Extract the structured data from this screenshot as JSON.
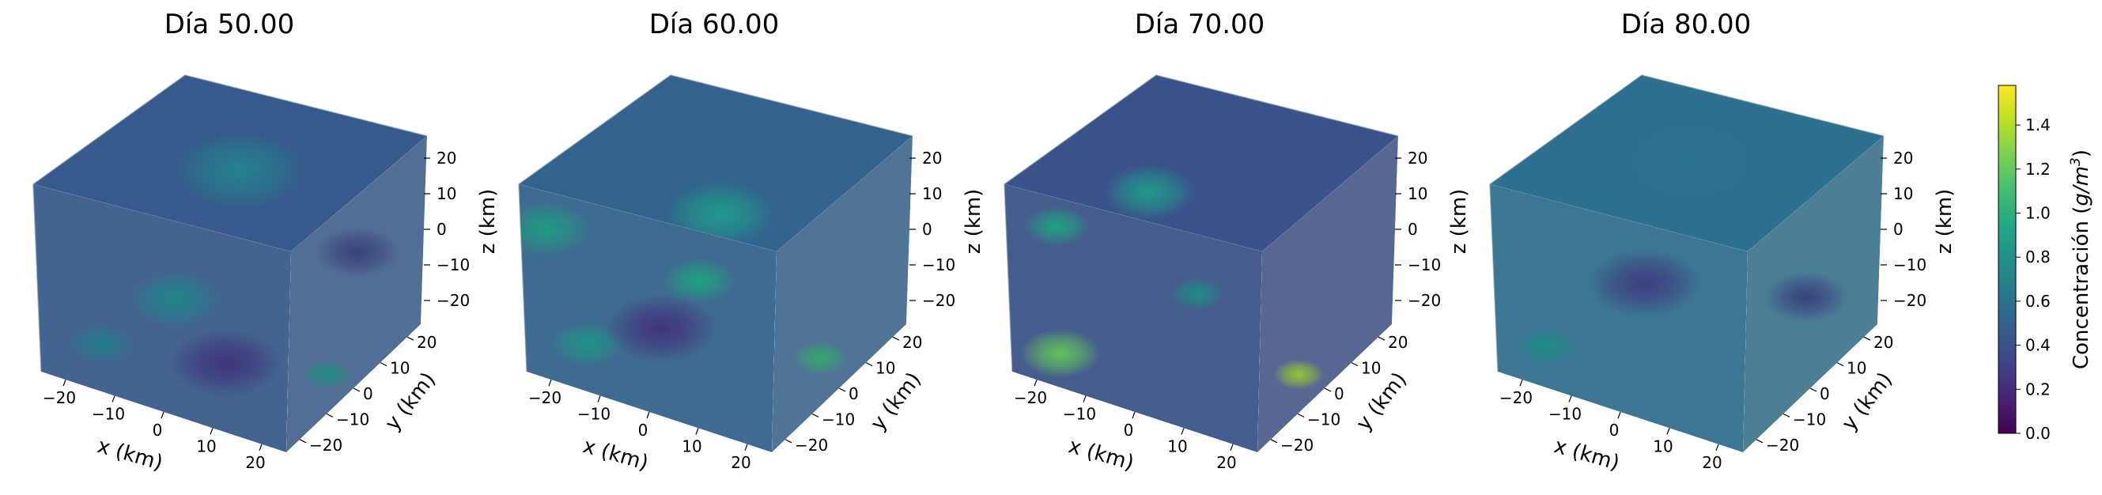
{
  "chart_data": {
    "type": "heatmap",
    "colormap": "viridis",
    "panels": [
      {
        "title": "Día 50.00",
        "xlabel": "x (km)",
        "ylabel": "y (km)",
        "zlabel": "z (km)",
        "xlim": [
          -25,
          25
        ],
        "ylim": [
          -25,
          25
        ],
        "zlim": [
          -25,
          25
        ],
        "xticks": [
          "−20",
          "−10",
          "0",
          "10",
          "20"
        ],
        "yticks": [
          "−20",
          "−10",
          "0",
          "10",
          "20"
        ],
        "zticks": [
          "20",
          "10",
          "0",
          "−10",
          "−20"
        ],
        "hotspots": [
          {
            "face": "top",
            "u": 0.45,
            "v": 0.55,
            "value": 0.7,
            "radius": 0.35
          },
          {
            "face": "front",
            "u": 0.55,
            "v": 0.4,
            "value": 0.75,
            "radius": 0.25
          },
          {
            "face": "front",
            "u": 0.25,
            "v": 0.75,
            "value": 0.7,
            "radius": 0.18
          },
          {
            "face": "front",
            "u": 0.75,
            "v": 0.65,
            "value": 0.25,
            "radius": 0.3
          },
          {
            "face": "side",
            "u": 0.3,
            "v": 0.8,
            "value": 0.85,
            "radius": 0.18
          },
          {
            "face": "side",
            "u": 0.5,
            "v": 0.3,
            "value": 0.35,
            "radius": 0.3
          }
        ],
        "base_value": 0.45
      },
      {
        "title": "Día 60.00",
        "xlabel": "x (km)",
        "ylabel": "y (km)",
        "zlabel": "z (km)",
        "xlim": [
          -25,
          25
        ],
        "ylim": [
          -25,
          25
        ],
        "zlim": [
          -25,
          25
        ],
        "xticks": [
          "−20",
          "−10",
          "0",
          "10",
          "20"
        ],
        "yticks": [
          "−20",
          "−10",
          "0",
          "10",
          "20"
        ],
        "zticks": [
          "20",
          "10",
          "0",
          "−10",
          "−20"
        ],
        "hotspots": [
          {
            "face": "top",
            "u": 0.15,
            "v": 0.7,
            "value": 0.85,
            "radius": 0.3
          },
          {
            "face": "front",
            "u": 0.1,
            "v": 0.2,
            "value": 0.9,
            "radius": 0.25
          },
          {
            "face": "front",
            "u": 0.7,
            "v": 0.25,
            "value": 0.95,
            "radius": 0.2
          },
          {
            "face": "front",
            "u": 0.25,
            "v": 0.75,
            "value": 0.85,
            "radius": 0.2
          },
          {
            "face": "front",
            "u": 0.55,
            "v": 0.55,
            "value": 0.25,
            "radius": 0.3
          },
          {
            "face": "side",
            "u": 0.35,
            "v": 0.75,
            "value": 1.05,
            "radius": 0.2
          }
        ],
        "base_value": 0.5
      },
      {
        "title": "Día 70.00",
        "xlabel": "x (km)",
        "ylabel": "y (km)",
        "zlabel": "z (km)",
        "xlim": [
          -25,
          25
        ],
        "ylim": [
          -25,
          25
        ],
        "zlim": [
          -25,
          25
        ],
        "xticks": [
          "−20",
          "−10",
          "0",
          "10",
          "20"
        ],
        "yticks": [
          "−20",
          "−10",
          "0",
          "10",
          "20"
        ],
        "zticks": [
          "20",
          "10",
          "0",
          "−10",
          "−20"
        ],
        "hotspots": [
          {
            "face": "top",
            "u": 0.2,
            "v": 0.45,
            "value": 0.85,
            "radius": 0.25
          },
          {
            "face": "front",
            "u": 0.2,
            "v": 0.15,
            "value": 0.95,
            "radius": 0.18
          },
          {
            "face": "front",
            "u": 0.75,
            "v": 0.3,
            "value": 0.8,
            "radius": 0.15
          },
          {
            "face": "front",
            "u": 0.2,
            "v": 0.82,
            "value": 1.2,
            "radius": 0.22
          },
          {
            "face": "side",
            "u": 0.3,
            "v": 0.8,
            "value": 1.35,
            "radius": 0.18
          }
        ],
        "base_value": 0.4
      },
      {
        "title": "Día 80.00",
        "xlabel": "x (km)",
        "ylabel": "y (km)",
        "zlabel": "z (km)",
        "xlim": [
          -25,
          25
        ],
        "ylim": [
          -25,
          25
        ],
        "zlim": [
          -25,
          25
        ],
        "xticks": [
          "−20",
          "−10",
          "0",
          "10",
          "20"
        ],
        "yticks": [
          "−20",
          "−10",
          "0",
          "10",
          "20"
        ],
        "zticks": [
          "20",
          "10",
          "0",
          "−10",
          "−20"
        ],
        "hotspots": [
          {
            "face": "top",
            "u": 0.5,
            "v": 0.5,
            "value": 0.6,
            "radius": 0.45
          },
          {
            "face": "front",
            "u": 0.6,
            "v": 0.3,
            "value": 0.3,
            "radius": 0.3
          },
          {
            "face": "front",
            "u": 0.2,
            "v": 0.78,
            "value": 0.8,
            "radius": 0.16
          },
          {
            "face": "side",
            "u": 0.45,
            "v": 0.5,
            "value": 0.35,
            "radius": 0.3
          }
        ],
        "base_value": 0.58
      }
    ],
    "colorbar": {
      "label": "Concentración (g/m³)",
      "label_main": "Concentración (",
      "label_unit": "g/m",
      "label_exp": "3",
      "label_close": ")",
      "range": [
        0.0,
        1.58
      ],
      "ticks": [
        "0.0",
        "0.2",
        "0.4",
        "0.6",
        "0.8",
        "1.0",
        "1.2",
        "1.4"
      ],
      "tick_values": [
        0.0,
        0.2,
        0.4,
        0.6,
        0.8,
        1.0,
        1.2,
        1.4
      ]
    }
  }
}
